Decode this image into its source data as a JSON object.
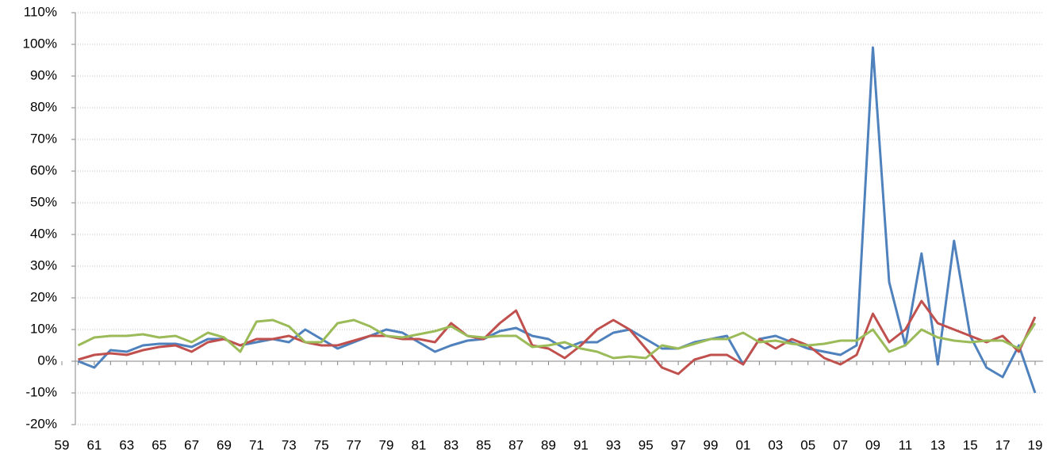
{
  "chart_data": {
    "type": "line",
    "categories": [
      "59",
      null,
      "61",
      null,
      "63",
      null,
      "65",
      null,
      "67",
      null,
      "69",
      null,
      "71",
      null,
      "73",
      null,
      "75",
      null,
      "77",
      null,
      "79",
      null,
      "81",
      null,
      "83",
      null,
      "85",
      null,
      "87",
      null,
      "89",
      null,
      "91",
      null,
      "93",
      null,
      "95",
      null,
      "97",
      null,
      "99",
      null,
      "01",
      null,
      "03",
      null,
      "05",
      null,
      "07",
      null,
      "09",
      null,
      "11",
      null,
      "13",
      null,
      "15",
      null,
      "17",
      null,
      "19"
    ],
    "series": [
      {
        "color": "#4f81bd",
        "values": [
          null,
          0,
          -2,
          3.5,
          3,
          5,
          5.5,
          5.5,
          4.5,
          7,
          7,
          5,
          6,
          7,
          6,
          10,
          7,
          4,
          6,
          8,
          10,
          9,
          6,
          3,
          5,
          6.5,
          7,
          9.5,
          10.5,
          8,
          7,
          4,
          6,
          6,
          9,
          10,
          7,
          4,
          4,
          6,
          7,
          8,
          -1,
          7,
          8,
          6,
          4,
          3,
          2,
          5,
          99,
          25,
          5,
          34,
          -1,
          38,
          8,
          -2,
          -5,
          5,
          -10
        ]
      },
      {
        "color": "#c0504d",
        "values": [
          null,
          0.5,
          2,
          2.5,
          2,
          3.5,
          4.5,
          5,
          3,
          6,
          7,
          5,
          7,
          7,
          8,
          6,
          5,
          5,
          6.5,
          8,
          8,
          7,
          7,
          6,
          12,
          8,
          7,
          12,
          16,
          5,
          4,
          1,
          5,
          10,
          13,
          10,
          4,
          -2,
          -4,
          0.5,
          2,
          2,
          -1,
          7,
          4,
          7,
          5,
          1,
          -1,
          2,
          15,
          6,
          10,
          19,
          12,
          10,
          8,
          6,
          8,
          3,
          14
        ]
      },
      {
        "color": "#9bbb59",
        "values": [
          null,
          5,
          7.5,
          8,
          8,
          8.5,
          7.5,
          8,
          6,
          9,
          7.5,
          3,
          12.5,
          13,
          11,
          6,
          6,
          12,
          13,
          11,
          8,
          7.5,
          8.5,
          9.5,
          11,
          8,
          7.5,
          8,
          8,
          4.5,
          5,
          6,
          4,
          3,
          1,
          1.5,
          1,
          5,
          4,
          5.5,
          7,
          7,
          9,
          6,
          6.5,
          5.5,
          5,
          5.5,
          6.5,
          6.5,
          10,
          3,
          5,
          10,
          7.5,
          6.5,
          6,
          6.5,
          6.5,
          4,
          12
        ]
      }
    ],
    "ylim": [
      -20,
      110
    ],
    "yticks": [
      {
        "value": -20,
        "label": "-20%"
      },
      {
        "value": -10,
        "label": "-10%"
      },
      {
        "value": 0,
        "label": "0%"
      },
      {
        "value": 10,
        "label": "10%"
      },
      {
        "value": 20,
        "label": "20%"
      },
      {
        "value": 30,
        "label": "30%"
      },
      {
        "value": 40,
        "label": "40%"
      },
      {
        "value": 50,
        "label": "50%"
      },
      {
        "value": 60,
        "label": "60%"
      },
      {
        "value": 70,
        "label": "70%"
      },
      {
        "value": 80,
        "label": "80%"
      },
      {
        "value": 90,
        "label": "90%"
      },
      {
        "value": 100,
        "label": "100%"
      },
      {
        "value": 110,
        "label": "110%"
      }
    ],
    "grid": true
  }
}
